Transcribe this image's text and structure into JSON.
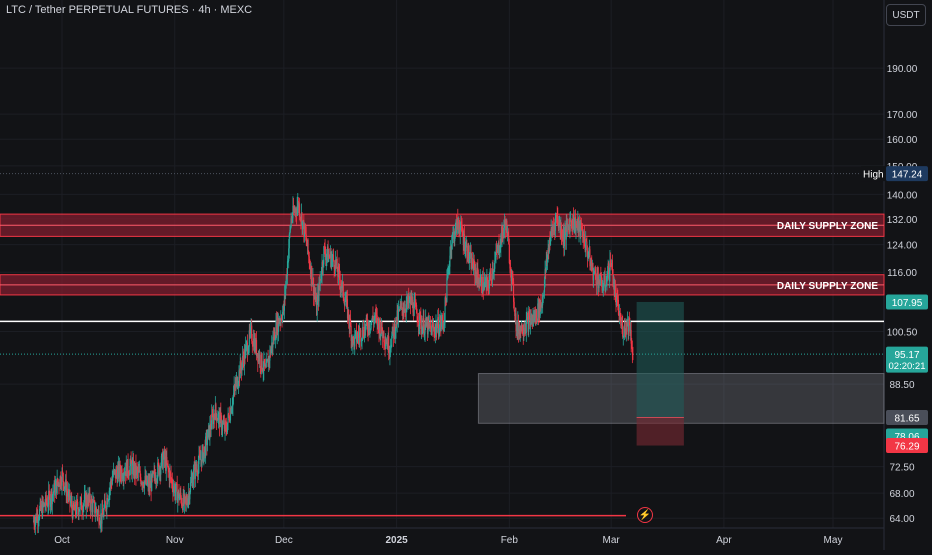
{
  "header": {
    "symbol_title": "LTC / Tether PERPETUAL FUTURES · 4h · MEXC",
    "currency": "USDT"
  },
  "icons": {
    "alert": "lightning-icon"
  },
  "colors": {
    "background": "#121316",
    "up": "#26a69a",
    "down": "#f23645",
    "zone": "#7f1d2f",
    "grid": "#1c1e24",
    "text": "#d1d4dc"
  },
  "chart_data": {
    "type": "candlestick",
    "title": "LTC / Tether PERPETUAL FUTURES · 4h · MEXC",
    "y_scale": "log",
    "ylim": [
      62.5,
      215
    ],
    "y_ticks": [
      "190.00",
      "170.00",
      "160.00",
      "150.00",
      "140.00",
      "132.00",
      "124.00",
      "116.00",
      "100.50",
      "88.50",
      "72.50",
      "68.00",
      "64.00"
    ],
    "x_ticks": [
      "Oct",
      "Nov",
      "Dec",
      "2025",
      "Feb",
      "Mar",
      "Apr",
      "May"
    ],
    "price_path": [
      [
        "2024-09-23",
        63.5
      ],
      [
        "2024-09-28",
        67.5
      ],
      [
        "2024-10-01",
        71
      ],
      [
        "2024-10-04",
        65
      ],
      [
        "2024-10-08",
        67
      ],
      [
        "2024-10-12",
        64
      ],
      [
        "2024-10-15",
        71
      ],
      [
        "2024-10-20",
        72.5
      ],
      [
        "2024-10-25",
        69
      ],
      [
        "2024-10-29",
        74
      ],
      [
        "2024-11-01",
        68.5
      ],
      [
        "2024-11-04",
        66
      ],
      [
        "2024-11-06",
        71
      ],
      [
        "2024-11-09",
        75
      ],
      [
        "2024-11-12",
        83
      ],
      [
        "2024-11-15",
        79
      ],
      [
        "2024-11-18",
        89
      ],
      [
        "2024-11-22",
        100
      ],
      [
        "2024-11-24",
        95
      ],
      [
        "2024-11-26",
        91
      ],
      [
        "2024-11-29",
        102
      ],
      [
        "2024-12-01",
        106
      ],
      [
        "2024-12-03",
        132
      ],
      [
        "2024-12-05",
        137
      ],
      [
        "2024-12-07",
        126
      ],
      [
        "2024-12-09",
        113
      ],
      [
        "2024-12-10",
        106
      ],
      [
        "2024-12-12",
        122
      ],
      [
        "2024-12-15",
        119
      ],
      [
        "2024-12-18",
        108
      ],
      [
        "2024-12-20",
        98
      ],
      [
        "2024-12-23",
        101
      ],
      [
        "2024-12-26",
        104
      ],
      [
        "2024-12-30",
        97
      ],
      [
        "2025-01-02",
        106
      ],
      [
        "2025-01-05",
        108
      ],
      [
        "2025-01-08",
        102
      ],
      [
        "2025-01-11",
        101
      ],
      [
        "2025-01-14",
        103
      ],
      [
        "2025-01-16",
        125
      ],
      [
        "2025-01-18",
        131
      ],
      [
        "2025-01-21",
        120
      ],
      [
        "2025-01-24",
        113
      ],
      [
        "2025-01-26",
        112
      ],
      [
        "2025-01-28",
        119
      ],
      [
        "2025-01-31",
        131
      ],
      [
        "2025-02-03",
        101
      ],
      [
        "2025-02-05",
        102
      ],
      [
        "2025-02-08",
        104
      ],
      [
        "2025-02-10",
        108
      ],
      [
        "2025-02-12",
        125
      ],
      [
        "2025-02-14",
        133
      ],
      [
        "2025-02-16",
        126
      ],
      [
        "2025-02-18",
        132
      ],
      [
        "2025-02-21",
        128
      ],
      [
        "2025-02-24",
        116
      ],
      [
        "2025-02-27",
        112
      ],
      [
        "2025-03-01",
        119
      ],
      [
        "2025-03-02",
        110
      ],
      [
        "2025-03-04",
        101
      ],
      [
        "2025-03-06",
        103
      ],
      [
        "2025-03-07",
        95.17
      ]
    ],
    "supply_zones": [
      {
        "label": "DAILY SUPPLY ZONE",
        "from": 126.5,
        "to": 133.5
      },
      {
        "label": "DAILY SUPPLY ZONE",
        "from": 109.8,
        "to": 115.3
      }
    ],
    "horizontal_lines": {
      "white_level": 103.0,
      "support_red": 64.4
    },
    "demand_box": {
      "from": 80.5,
      "to": 90.8,
      "start": "2025-01-29",
      "end": "2025-05-21"
    },
    "position": {
      "entry": 81.65,
      "target": 107.95,
      "stop": 76.29,
      "start": "2025-03-08",
      "end": "2025-03-21"
    },
    "price_labels": [
      {
        "label": "High",
        "value": "147.24",
        "color": "#1e3a5f"
      },
      {
        "value": "107.95",
        "color": "#26a69a"
      },
      {
        "value": "95.17",
        "sub": "02:20:21",
        "color": "#26a69a"
      },
      {
        "value": "81.65",
        "color": "#4a4e59"
      },
      {
        "value": "78.06",
        "color": "#26a69a"
      },
      {
        "value": "76.29",
        "color": "#f23645"
      }
    ],
    "high_value": 147.24,
    "last_price": 95.17,
    "countdown": "02:20:21",
    "grid": true
  }
}
